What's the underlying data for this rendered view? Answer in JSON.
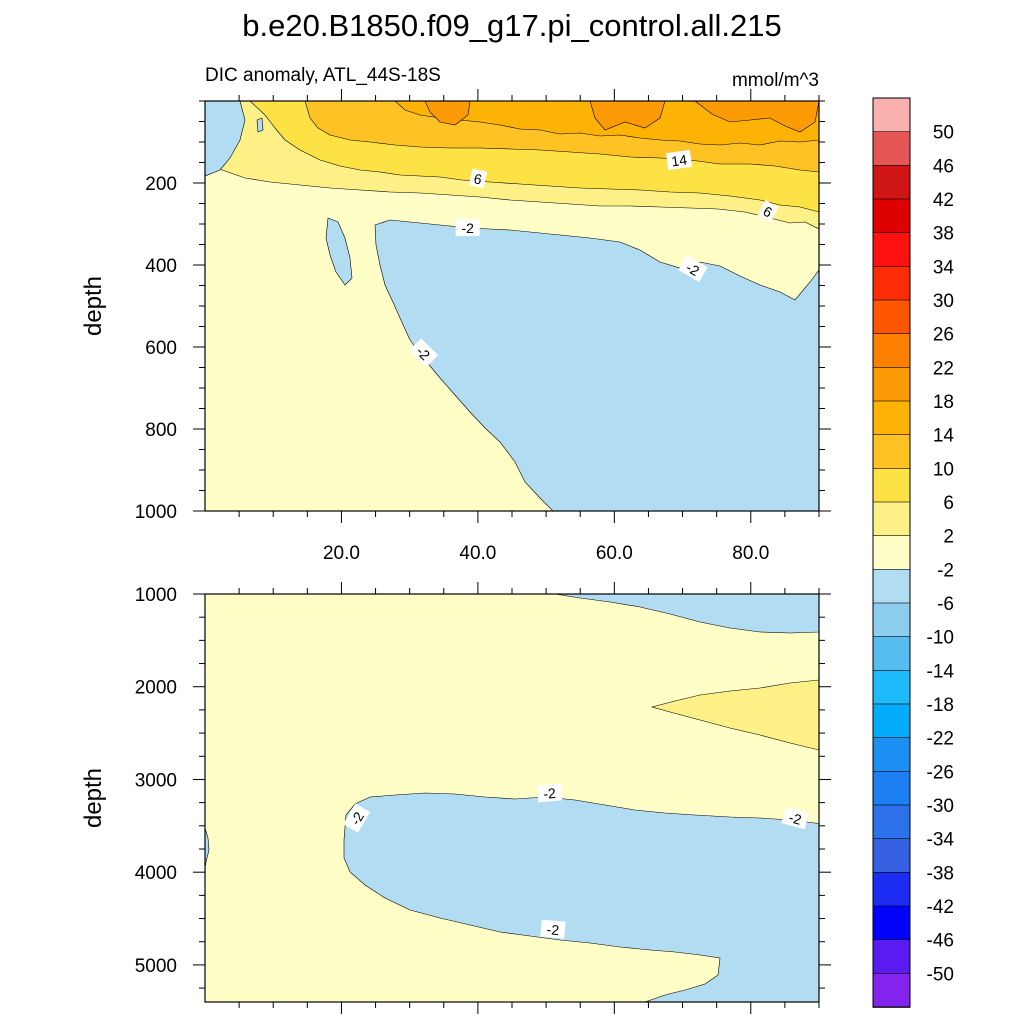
{
  "title": "b.e20.B1850.f09_g17.pi_control.all.215",
  "chart_data": [
    {
      "type": "contour",
      "subtitle_left": "DIC anomaly, ATL_44S-18S",
      "subtitle_right": "mmol/m^3",
      "ylabel": "depth",
      "xlim": [
        0,
        90
      ],
      "ylim": [
        0,
        1000
      ],
      "y_inverted": true,
      "xticks": [
        20,
        40,
        60,
        80
      ],
      "xtick_labels": [
        "20.0",
        "40.0",
        "60.0",
        "80.0"
      ],
      "yticks": [
        200,
        400,
        600,
        800,
        1000
      ],
      "ytick_labels": [
        "200",
        "400",
        "600",
        "800",
        "1000"
      ],
      "contour_labels": [
        {
          "text": "14",
          "x": 69.5,
          "y": 145,
          "angle": -8
        },
        {
          "text": "6",
          "x": 40.0,
          "y": 190,
          "angle": 12
        },
        {
          "text": "6",
          "x": 82.5,
          "y": 270,
          "angle": 28
        },
        {
          "text": "-2",
          "x": 38.5,
          "y": 310,
          "angle": 0
        },
        {
          "text": "-2",
          "x": 71.5,
          "y": 410,
          "angle": 30
        },
        {
          "text": "-2",
          "x": 32.0,
          "y": 615,
          "angle": 45
        }
      ]
    },
    {
      "type": "contour",
      "ylabel": "depth",
      "xlim": [
        0,
        90
      ],
      "ylim": [
        1000,
        5400
      ],
      "y_inverted": true,
      "yticks": [
        1000,
        2000,
        3000,
        4000,
        5000
      ],
      "ytick_labels": [
        "1000",
        "2000",
        "3000",
        "4000",
        "5000"
      ],
      "contour_labels": [
        {
          "text": "-2",
          "x": 50.5,
          "y": 3150,
          "angle": -5
        },
        {
          "text": "-2",
          "x": 22.3,
          "y": 3420,
          "angle": -60
        },
        {
          "text": "-2",
          "x": 86.5,
          "y": 3420,
          "angle": 15
        },
        {
          "text": "-2",
          "x": 51.0,
          "y": 4620,
          "angle": 5
        }
      ]
    }
  ],
  "colorbar": {
    "levels": [
      "50",
      "46",
      "42",
      "38",
      "34",
      "30",
      "26",
      "22",
      "18",
      "14",
      "10",
      "6",
      "2",
      "-2",
      "-6",
      "-10",
      "-14",
      "-18",
      "-22",
      "-26",
      "-30",
      "-34",
      "-38",
      "-42",
      "-46",
      "-50"
    ],
    "colors": [
      "#fbb0b0",
      "#e65656",
      "#cf1515",
      "#df0000",
      "#fd1010",
      "#fb2c06",
      "#fd5500",
      "#fe8000",
      "#fd9b06",
      "#fdb306",
      "#fec225",
      "#fde246",
      "#fcf086",
      "#fefec6",
      "#b2dcf2",
      "#8ccdee",
      "#56bdf1",
      "#1ebaf9",
      "#04acfa",
      "#1c8ff3",
      "#1c7ff2",
      "#2c70ea",
      "#3560e0",
      "#1c2cf2",
      "#0303fc",
      "#5a1bf0",
      "#8224ed"
    ]
  }
}
